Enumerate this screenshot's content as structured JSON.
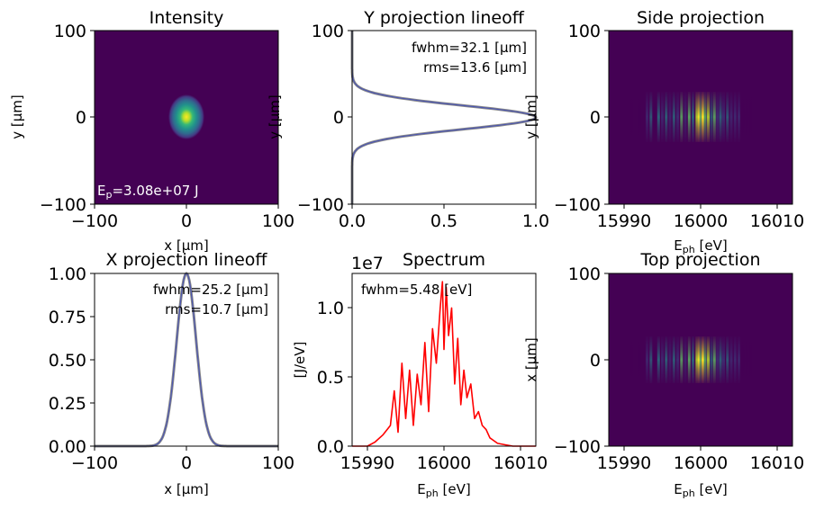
{
  "colors": {
    "viridis_bg": "#440154",
    "line_blue": "#4c56b0",
    "line_gray": "#8a8a8a",
    "spectrum_red": "#ff0000"
  },
  "chart_data": [
    {
      "id": "intensity",
      "type": "heatmap",
      "title": "Intensity",
      "xlabel": "x [μm]",
      "ylabel": "y [μm]",
      "xlim": [
        -100,
        100
      ],
      "ylim": [
        -100,
        100
      ],
      "xticks": [
        "−100",
        "0",
        "100"
      ],
      "yticks": [
        "100",
        "0",
        "−100"
      ],
      "annotation": "E_p=3.08e+07 J",
      "annotation_sub": "p",
      "annotation_rest": "=3.08e+07 J",
      "spot": {
        "x_center": 0,
        "y_center": 0,
        "x_fwhm": 25.2,
        "y_fwhm": 32.1
      },
      "colormap": "viridis"
    },
    {
      "id": "y-lineoff",
      "type": "line",
      "title": "Y projection lineoff",
      "xlim": [
        0.0,
        1.0
      ],
      "ylim": [
        -100,
        100
      ],
      "xticks": [
        "0.0",
        "0.5",
        "1.0"
      ],
      "yticks": [
        "100",
        "0",
        "−100"
      ],
      "ylabel": "y [μm]",
      "annotations": [
        "fwhm=32.1  [μm]",
        "rms=13.6 [μm]"
      ],
      "profile": {
        "center": 0,
        "fwhm": 32.1,
        "peak": 1.0
      }
    },
    {
      "id": "side-projection",
      "type": "heatmap",
      "title": "Side projection",
      "xlabel": "E_ph [eV]",
      "ylabel": "y [μm]",
      "xlim": [
        15988,
        16012
      ],
      "ylim": [
        -100,
        100
      ],
      "xticks": [
        "15990",
        "16000",
        "16010"
      ],
      "yticks": [
        "100",
        "0",
        "−100"
      ],
      "colormap": "viridis"
    },
    {
      "id": "x-lineoff",
      "type": "line",
      "title": "X projection lineoff",
      "xlabel": "x [μm]",
      "xlim": [
        -100,
        100
      ],
      "ylim": [
        0.0,
        1.0
      ],
      "xticks": [
        "−100",
        "0",
        "100"
      ],
      "yticks": [
        "1.00",
        "0.75",
        "0.50",
        "0.25",
        "0.00"
      ],
      "annotations": [
        "fwhm=25.2  [μm]",
        "rms=10.7 [μm]"
      ],
      "profile": {
        "center": 0,
        "fwhm": 25.2,
        "peak": 1.0
      }
    },
    {
      "id": "spectrum",
      "type": "line",
      "title": "Spectrum",
      "xlabel": "E_ph [eV]",
      "ylabel": "[J/eV]",
      "offset_text": "1e7",
      "xlim": [
        15988,
        16012
      ],
      "ylim": [
        0.0,
        1.25
      ],
      "xticks": [
        "15990",
        "16000",
        "16010"
      ],
      "yticks": [
        "1.0",
        "0.5",
        "0.0"
      ],
      "annotations": [
        "fwhm=5.48  [eV]"
      ],
      "x": [
        15988,
        15990,
        15991,
        15992,
        15993,
        15993.5,
        15994,
        15994.5,
        15995,
        15995.5,
        15996,
        15996.5,
        15997,
        15997.5,
        15998,
        15998.5,
        15999,
        15999.5,
        15999.8,
        16000,
        16000.3,
        16000.6,
        16001,
        16001.4,
        16001.8,
        16002.2,
        16002.6,
        16003,
        16003.5,
        16004,
        16004.5,
        16005,
        16005.5,
        16006,
        16006.5,
        16007,
        16008,
        16009,
        16012
      ],
      "y": [
        0.0,
        0.0,
        0.03,
        0.08,
        0.15,
        0.4,
        0.1,
        0.6,
        0.2,
        0.55,
        0.15,
        0.52,
        0.3,
        0.75,
        0.25,
        0.85,
        0.6,
        1.0,
        1.19,
        0.7,
        1.15,
        0.8,
        1.0,
        0.45,
        0.78,
        0.3,
        0.55,
        0.35,
        0.45,
        0.2,
        0.25,
        0.15,
        0.12,
        0.06,
        0.04,
        0.02,
        0.01,
        0.0,
        0.0
      ]
    },
    {
      "id": "top-projection",
      "type": "heatmap",
      "title": "Top projection",
      "xlabel": "E_ph [eV]",
      "ylabel": "x [μm]",
      "xlim": [
        15988,
        16012
      ],
      "ylim": [
        -100,
        100
      ],
      "xticks": [
        "15990",
        "16000",
        "16010"
      ],
      "yticks": [
        "100",
        "0",
        "−100"
      ],
      "colormap": "viridis"
    }
  ]
}
